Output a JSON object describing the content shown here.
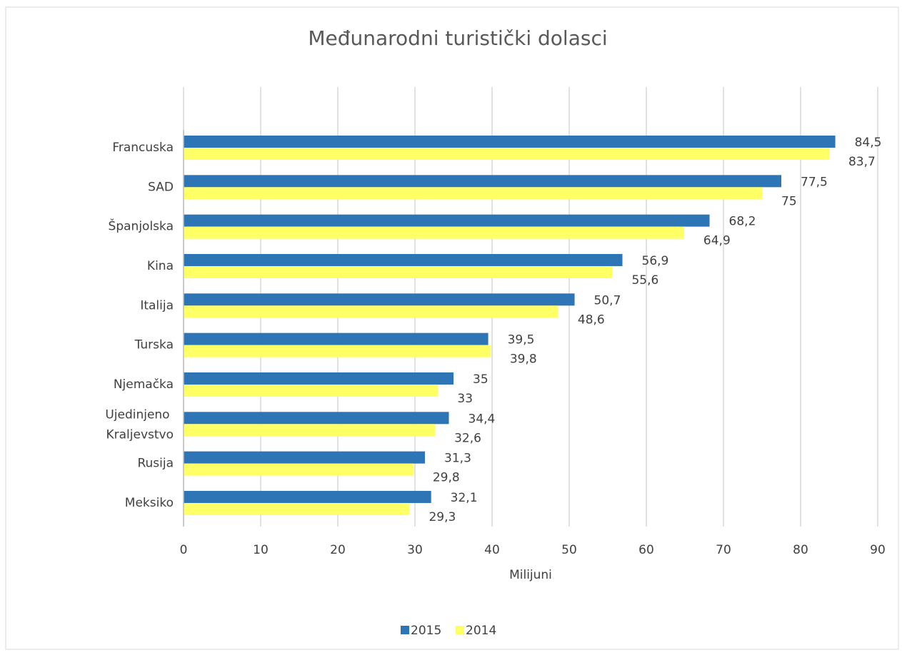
{
  "chart_data": {
    "type": "hbar",
    "title": "Međunarodni turistički dolasci",
    "x_label": "Milijuni",
    "categories": [
      "Francuska",
      "SAD",
      "Španjolska",
      "Kina",
      "Italija",
      "Turska",
      "Njemačka",
      "Ujedinjeno Kraljevstvo",
      "Rusija",
      "Meksiko"
    ],
    "series": [
      {
        "name": "2015",
        "color": "#2e75b6",
        "values": [
          84.5,
          77.5,
          68.2,
          56.9,
          50.7,
          39.5,
          35,
          34.4,
          31.3,
          32.1
        ],
        "value_labels": [
          "84,5",
          "77,5",
          "68,2",
          "56,9",
          "50,7",
          "39,5",
          "35",
          "34,4",
          "31,3",
          "32,1"
        ]
      },
      {
        "name": "2014",
        "color": "#ffff66",
        "values": [
          83.7,
          75,
          64.9,
          55.6,
          48.6,
          39.8,
          33,
          32.6,
          29.8,
          29.3
        ],
        "value_labels": [
          "83,7",
          "75",
          "64,9",
          "55,6",
          "48,6",
          "39,8",
          "33",
          "32,6",
          "29,8",
          "29,3"
        ]
      }
    ],
    "xlim": [
      0,
      90
    ],
    "xticks": [
      0,
      10,
      20,
      30,
      40,
      50,
      60,
      70,
      80,
      90
    ],
    "grid": true,
    "legend": "bottom"
  }
}
